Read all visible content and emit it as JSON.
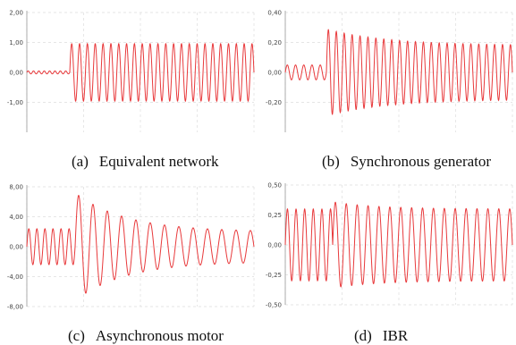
{
  "colors": {
    "signal": "#e8393b",
    "axis": "#9a9a9a",
    "grid": "#dddddd"
  },
  "captions": [
    {
      "tag": "(a)",
      "text": "Equivalent network"
    },
    {
      "tag": "(b)",
      "text": "Synchronous generator"
    },
    {
      "tag": "(c)",
      "text": "Asynchronous motor"
    },
    {
      "tag": "(d)",
      "text": "IBR"
    }
  ],
  "chart_data": [
    {
      "type": "line",
      "title": "",
      "xlabel": "",
      "ylabel": "",
      "ylim": [
        -2.0,
        2.0
      ],
      "yticks": [
        2.0,
        1.0,
        0.0,
        -1.0
      ],
      "tick_labels": [
        "2,00",
        "1,00",
        "0,00",
        "-1,00"
      ],
      "grid": true,
      "series": [
        {
          "pre_fault_amplitude": 0.05,
          "pre_fault_cycles": 8,
          "post_fault_amplitude": 0.96,
          "post_fault_cycles": 23.5,
          "decay": 0.0,
          "steady_amplitude": 0.96
        }
      ]
    },
    {
      "type": "line",
      "title": "",
      "xlabel": "",
      "ylabel": "",
      "ylim": [
        -0.4,
        0.4
      ],
      "yticks": [
        0.4,
        0.2,
        0.0,
        -0.2
      ],
      "tick_labels": [
        "0,40",
        "0,20",
        "0,00",
        "-0,20"
      ],
      "grid": true,
      "series": [
        {
          "pre_fault_amplitude": 0.05,
          "pre_fault_cycles": 5,
          "post_fault_amplitude": 0.29,
          "post_fault_cycles": 23.5,
          "decay": 3.0,
          "steady_amplitude": 0.18
        }
      ]
    },
    {
      "type": "line",
      "title": "",
      "xlabel": "",
      "ylabel": "",
      "ylim": [
        -8.0,
        8.0
      ],
      "yticks": [
        8.0,
        4.0,
        0.0,
        -4.0,
        -8.0
      ],
      "tick_labels": [
        "8,00",
        "4,00",
        "0,00",
        "-4,00",
        "-8,00"
      ],
      "grid": true,
      "series": [
        {
          "pre_fault_amplitude": 2.4,
          "pre_fault_cycles": 6,
          "post_fault_amplitude": 7.2,
          "post_fault_cycles": 12.5,
          "decay": 3.5,
          "steady_amplitude": 2.0
        }
      ]
    },
    {
      "type": "line",
      "title": "",
      "xlabel": "",
      "ylabel": "",
      "ylim": [
        -0.5,
        0.5
      ],
      "yticks": [
        0.5,
        0.25,
        0.0,
        -0.25,
        -0.5
      ],
      "tick_labels": [
        "0,50",
        "0,25",
        "0,00",
        "-0,25",
        "-0,50"
      ],
      "grid": true,
      "series": [
        {
          "pre_fault_amplitude": 0.3,
          "pre_fault_cycles": 5.5,
          "post_fault_amplitude": 0.36,
          "post_fault_cycles": 16.5,
          "decay": 4.0,
          "steady_amplitude": 0.3
        }
      ]
    }
  ]
}
